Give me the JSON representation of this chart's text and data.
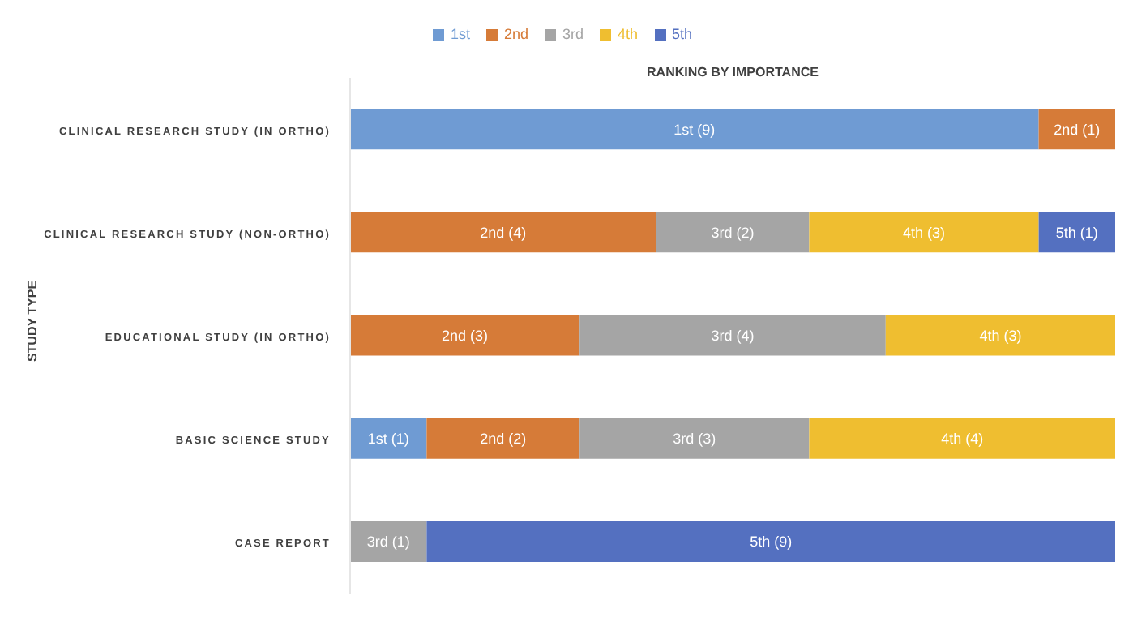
{
  "chart_data": {
    "type": "bar",
    "orientation": "horizontal",
    "stacked": true,
    "xlabel": "RANKING BY IMPORTANCE",
    "ylabel": "STUDY TYPE",
    "categories": [
      "CLINICAL RESEARCH STUDY (IN ORTHO)",
      "CLINICAL RESEARCH STUDY (NON-ORTHO)",
      "EDUCATIONAL STUDY (IN ORTHO)",
      "BASIC SCIENCE STUDY",
      "CASE REPORT"
    ],
    "xlim": [
      0,
      10
    ],
    "tick_labels": "y",
    "grid": false,
    "legend": "top",
    "series": [
      {
        "name": "1st",
        "color": "#6f9bd3",
        "values": [
          9,
          null,
          null,
          1,
          null
        ],
        "value_labels": [
          "1st (9)",
          null,
          null,
          "1st (1)",
          null
        ]
      },
      {
        "name": "2nd",
        "color": "#d67b38",
        "values": [
          1,
          4,
          3,
          2,
          null
        ],
        "value_labels": [
          "2nd (1)",
          "2nd (4)",
          "2nd (3)",
          "2nd (2)",
          null
        ]
      },
      {
        "name": "3rd",
        "color": "#a5a5a5",
        "values": [
          null,
          2,
          4,
          3,
          1
        ],
        "value_labels": [
          null,
          "3rd (2)",
          "3rd (4)",
          "3rd (3)",
          "3rd (1)"
        ]
      },
      {
        "name": "4th",
        "color": "#efbe30",
        "values": [
          null,
          3,
          3,
          4,
          null
        ],
        "value_labels": [
          null,
          "4th (3)",
          "4th (3)",
          "4th (4)",
          null
        ]
      },
      {
        "name": "5th",
        "color": "#5470c0",
        "values": [
          null,
          1,
          null,
          null,
          9
        ],
        "value_labels": [
          null,
          "5th (1)",
          null,
          null,
          "5th (9)"
        ]
      }
    ]
  }
}
